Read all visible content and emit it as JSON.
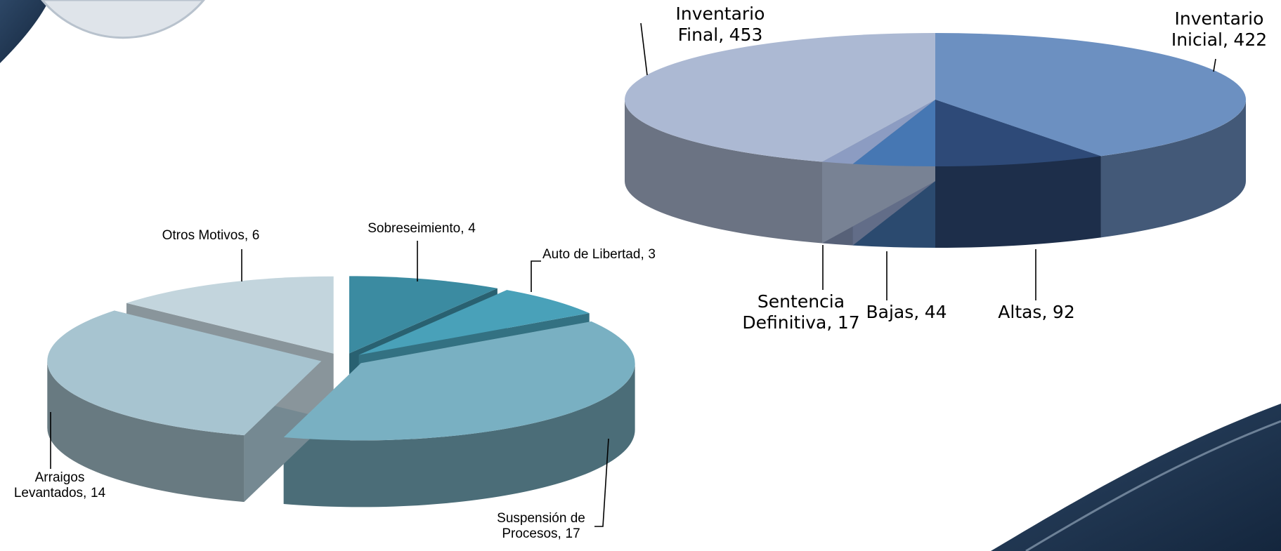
{
  "chart_data": [
    {
      "type": "pie",
      "categories": [
        "Inventario Inicial,",
        "Altas,",
        "Bajas,",
        "Sentencia Definitiva,",
        "Inventario Final,"
      ],
      "values": [
        422,
        92,
        44,
        17,
        453
      ],
      "colors": [
        "#6c90c1",
        "#2e4a78",
        "#4677b3",
        "#8c9cc2",
        "#acb9d3"
      ]
    },
    {
      "type": "pie",
      "categories": [
        "Sobreseimiento,",
        "Auto de Libertad,",
        "Suspensión de Procesos,",
        "Arraigos Levantados,",
        "Otros Motivos,"
      ],
      "values": [
        4,
        3,
        17,
        14,
        6
      ],
      "colors": [
        "#3b8ba1",
        "#49a1b9",
        "#79b0c2",
        "#a7c4d0",
        "#c3d5dd"
      ]
    }
  ]
}
